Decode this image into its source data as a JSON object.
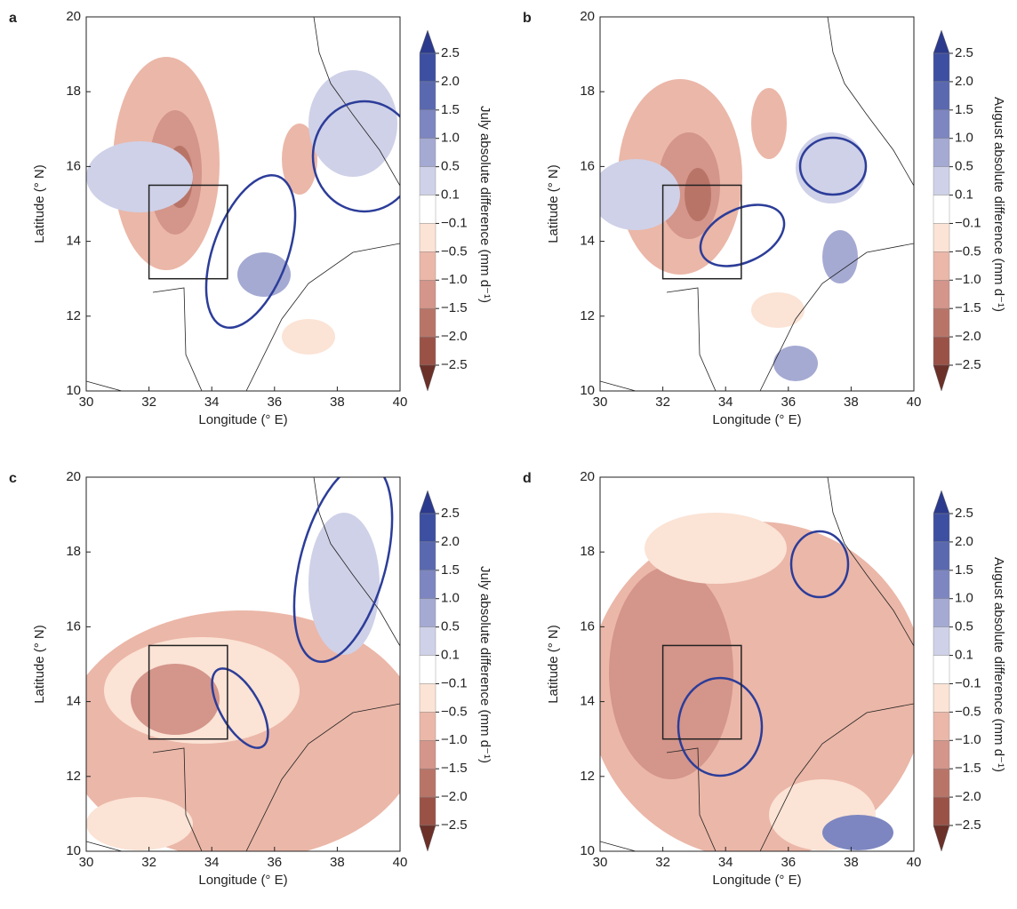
{
  "chart_data": [
    {
      "type": "contour",
      "label": "a",
      "xlabel": "Longitude (° E)",
      "ylabel": "Latitude (° N)",
      "xlim": [
        30,
        40
      ],
      "ylim": [
        10,
        20
      ],
      "xticks": [
        30,
        32,
        34,
        36,
        38,
        40
      ],
      "yticks": [
        10,
        12,
        14,
        16,
        18,
        20
      ],
      "box": {
        "lon": [
          32,
          34.5
        ],
        "lat": [
          13,
          15.5
        ]
      },
      "colorbar": {
        "label": "July absolute difference (mm d⁻¹)",
        "ticks": [
          2.5,
          {
            "value": 2,
            "label": "2.0"
          },
          1.5,
          {
            "value": 1,
            "label": "1.0"
          },
          0.5,
          0.1,
          {
            "value": -0.1,
            "label": "−0.1"
          },
          {
            "value": -0.5,
            "label": "−0.5"
          },
          {
            "value": -1,
            "label": "−1.0"
          },
          {
            "value": -1.5,
            "label": "−1.5"
          },
          {
            "value": -2,
            "label": "−2.0"
          },
          {
            "value": -2.5,
            "label": "−2.5"
          }
        ],
        "colors": [
          "#2b3a8c",
          "#3d4fa0",
          "#5a68b0",
          "#7d86c0",
          "#a5aad3",
          "#cfd1e8",
          "#ffffff",
          "#fbe3d5",
          "#ebb7a8",
          "#d4958a",
          "#b97468",
          "#9a5247",
          "#6b3028"
        ]
      }
    },
    {
      "type": "contour",
      "label": "b",
      "xlabel": "Longitude (° E)",
      "ylabel": "Latitude (° N)",
      "xlim": [
        30,
        40
      ],
      "ylim": [
        10,
        20
      ],
      "xticks": [
        30,
        32,
        34,
        36,
        38,
        40
      ],
      "yticks": [
        10,
        12,
        14,
        16,
        18,
        20
      ],
      "box": {
        "lon": [
          32,
          34.5
        ],
        "lat": [
          13,
          15.5
        ]
      },
      "colorbar": {
        "label": "August absolute difference (mm d⁻¹)",
        "ticks": [
          2.5,
          {
            "value": 2,
            "label": "2.0"
          },
          1.5,
          {
            "value": 1,
            "label": "1.0"
          },
          0.5,
          0.1,
          {
            "value": -0.1,
            "label": "−0.1"
          },
          {
            "value": -0.5,
            "label": "−0.5"
          },
          {
            "value": -1,
            "label": "−1.0"
          },
          {
            "value": -1.5,
            "label": "−1.5"
          },
          {
            "value": -2,
            "label": "−2.0"
          },
          {
            "value": -2.5,
            "label": "−2.5"
          }
        ],
        "colors": [
          "#2b3a8c",
          "#3d4fa0",
          "#5a68b0",
          "#7d86c0",
          "#a5aad3",
          "#cfd1e8",
          "#ffffff",
          "#fbe3d5",
          "#ebb7a8",
          "#d4958a",
          "#b97468",
          "#9a5247",
          "#6b3028"
        ]
      }
    },
    {
      "type": "contour",
      "label": "c",
      "xlabel": "Longitude (° E)",
      "ylabel": "Latitude (° N)",
      "xlim": [
        30,
        40
      ],
      "ylim": [
        10,
        20
      ],
      "xticks": [
        30,
        32,
        34,
        36,
        38,
        40
      ],
      "yticks": [
        10,
        12,
        14,
        16,
        18,
        20
      ],
      "box": {
        "lon": [
          32,
          34.5
        ],
        "lat": [
          13,
          15.5
        ]
      },
      "colorbar": {
        "label": "July absolute difference (mm d⁻¹)",
        "ticks": [
          2.5,
          {
            "value": 2,
            "label": "2.0"
          },
          1.5,
          {
            "value": 1,
            "label": "1.0"
          },
          0.5,
          0.1,
          {
            "value": -0.1,
            "label": "−0.1"
          },
          {
            "value": -0.5,
            "label": "−0.5"
          },
          {
            "value": -1,
            "label": "−1.0"
          },
          {
            "value": -1.5,
            "label": "−1.5"
          },
          {
            "value": -2,
            "label": "−2.0"
          },
          {
            "value": -2.5,
            "label": "−2.5"
          }
        ],
        "colors": [
          "#2b3a8c",
          "#3d4fa0",
          "#5a68b0",
          "#7d86c0",
          "#a5aad3",
          "#cfd1e8",
          "#ffffff",
          "#fbe3d5",
          "#ebb7a8",
          "#d4958a",
          "#b97468",
          "#9a5247",
          "#6b3028"
        ]
      }
    },
    {
      "type": "contour",
      "label": "d",
      "xlabel": "Longitude (° E)",
      "ylabel": "Latitude (° N)",
      "xlim": [
        30,
        40
      ],
      "ylim": [
        10,
        20
      ],
      "xticks": [
        30,
        32,
        34,
        36,
        38,
        40
      ],
      "yticks": [
        10,
        12,
        14,
        16,
        18,
        20
      ],
      "box": {
        "lon": [
          32,
          34.5
        ],
        "lat": [
          13,
          15.5
        ]
      },
      "colorbar": {
        "label": "August absolute difference (mm d⁻¹)",
        "ticks": [
          2.5,
          {
            "value": 2,
            "label": "2.0"
          },
          1.5,
          {
            "value": 1,
            "label": "1.0"
          },
          0.5,
          0.1,
          {
            "value": -0.1,
            "label": "−0.1"
          },
          {
            "value": -0.5,
            "label": "−0.5"
          },
          {
            "value": -1,
            "label": "−1.0"
          },
          {
            "value": -1.5,
            "label": "−1.5"
          },
          {
            "value": -2,
            "label": "−2.0"
          },
          {
            "value": -2.5,
            "label": "−2.5"
          }
        ],
        "colors": [
          "#2b3a8c",
          "#3d4fa0",
          "#5a68b0",
          "#7d86c0",
          "#a5aad3",
          "#cfd1e8",
          "#ffffff",
          "#fbe3d5",
          "#ebb7a8",
          "#d4958a",
          "#b97468",
          "#9a5247",
          "#6b3028"
        ]
      }
    }
  ]
}
